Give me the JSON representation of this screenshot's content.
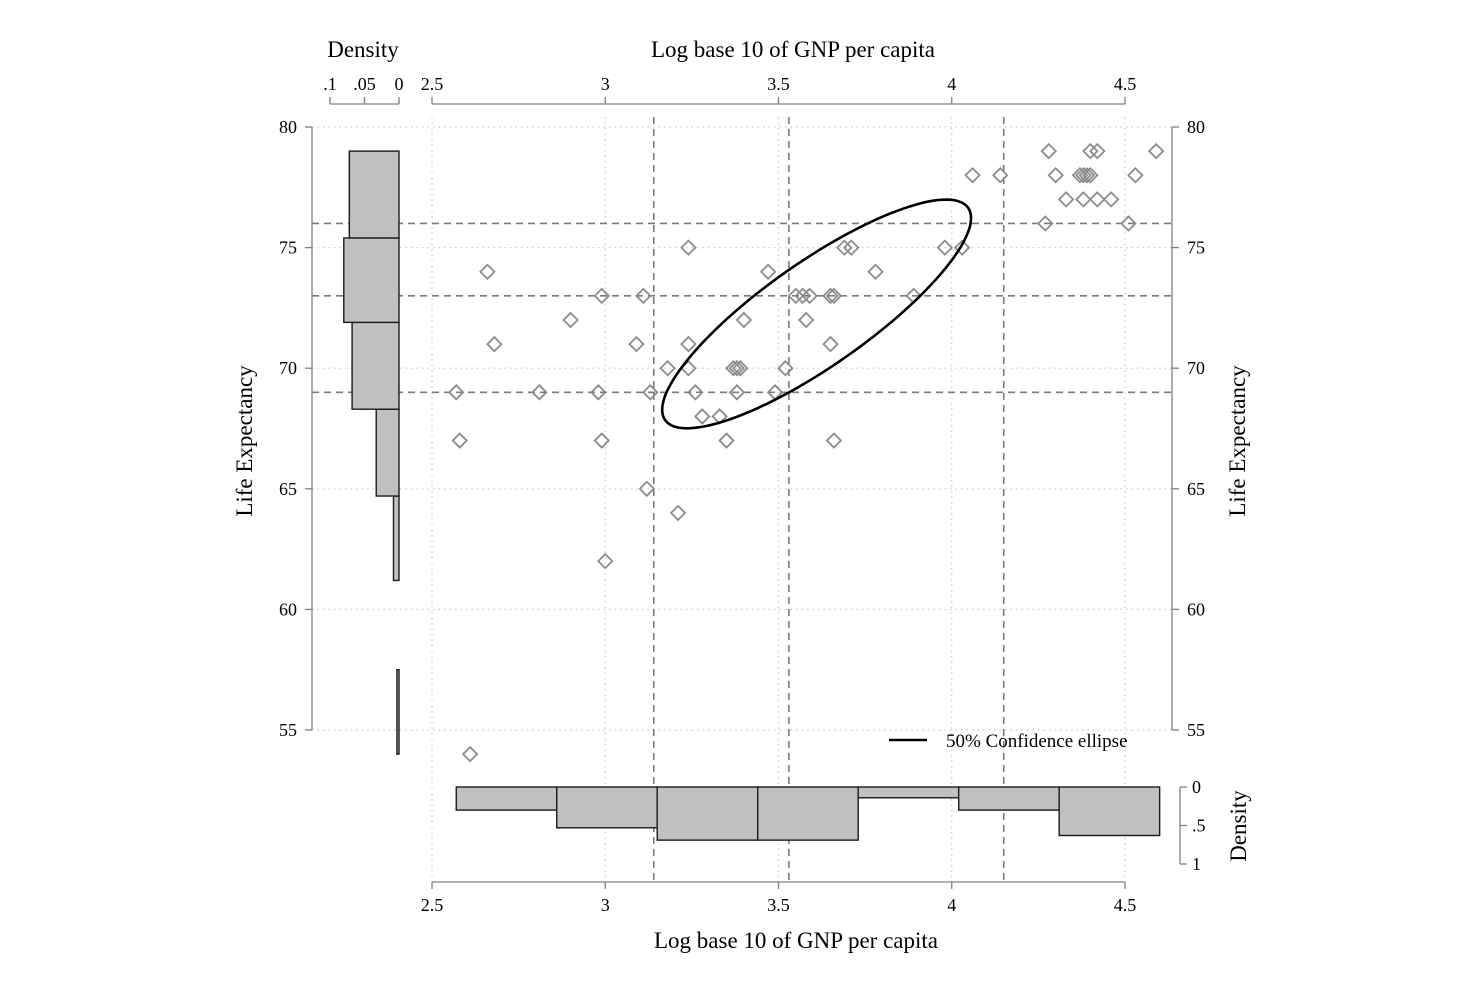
{
  "colors": {
    "marker": "#8c8c8c",
    "bar_fill": "#c0c0c0",
    "bar_stroke": "#1a1a1a",
    "axis": "#808080",
    "grid": "#c8c8c8",
    "quantile_line": "#7a7a7a",
    "ellipse": "#000000"
  },
  "chart_data": {
    "type": "scatter",
    "marker": "hollow-diamond",
    "x_axis": {
      "label": "Log base 10 of GNP per capita",
      "range": [
        2.5,
        4.6
      ],
      "ticks": [
        2.5,
        3,
        3.5,
        4,
        4.5
      ],
      "tick_labels": [
        "2.5",
        "3",
        "3.5",
        "4",
        "4.5"
      ],
      "shown_top_and_bottom": true
    },
    "y_axis": {
      "label": "Life Expectancy",
      "range": [
        54,
        80
      ],
      "ticks": [
        55,
        60,
        65,
        70,
        75,
        80
      ],
      "tick_labels": [
        "55",
        "60",
        "65",
        "70",
        "75",
        "80"
      ],
      "shown_left_and_right": true
    },
    "grid": true,
    "points": [
      {
        "x": 2.57,
        "y": 69
      },
      {
        "x": 2.58,
        "y": 67
      },
      {
        "x": 2.61,
        "y": 54
      },
      {
        "x": 2.66,
        "y": 74
      },
      {
        "x": 2.68,
        "y": 71
      },
      {
        "x": 2.81,
        "y": 69
      },
      {
        "x": 2.9,
        "y": 72
      },
      {
        "x": 2.98,
        "y": 69
      },
      {
        "x": 2.99,
        "y": 73
      },
      {
        "x": 2.99,
        "y": 67
      },
      {
        "x": 3.0,
        "y": 62
      },
      {
        "x": 3.09,
        "y": 71
      },
      {
        "x": 3.11,
        "y": 73
      },
      {
        "x": 3.12,
        "y": 65
      },
      {
        "x": 3.13,
        "y": 69
      },
      {
        "x": 3.18,
        "y": 70
      },
      {
        "x": 3.21,
        "y": 64
      },
      {
        "x": 3.24,
        "y": 75
      },
      {
        "x": 3.24,
        "y": 71
      },
      {
        "x": 3.24,
        "y": 70
      },
      {
        "x": 3.26,
        "y": 69
      },
      {
        "x": 3.28,
        "y": 68
      },
      {
        "x": 3.33,
        "y": 68
      },
      {
        "x": 3.35,
        "y": 67
      },
      {
        "x": 3.37,
        "y": 70
      },
      {
        "x": 3.38,
        "y": 69
      },
      {
        "x": 3.38,
        "y": 70
      },
      {
        "x": 3.39,
        "y": 70
      },
      {
        "x": 3.4,
        "y": 72
      },
      {
        "x": 3.47,
        "y": 74
      },
      {
        "x": 3.49,
        "y": 69
      },
      {
        "x": 3.52,
        "y": 70
      },
      {
        "x": 3.55,
        "y": 73
      },
      {
        "x": 3.57,
        "y": 73
      },
      {
        "x": 3.58,
        "y": 72
      },
      {
        "x": 3.59,
        "y": 73
      },
      {
        "x": 3.65,
        "y": 73
      },
      {
        "x": 3.65,
        "y": 71
      },
      {
        "x": 3.66,
        "y": 67
      },
      {
        "x": 3.66,
        "y": 73
      },
      {
        "x": 3.69,
        "y": 75
      },
      {
        "x": 3.71,
        "y": 75
      },
      {
        "x": 3.78,
        "y": 74
      },
      {
        "x": 3.89,
        "y": 73
      },
      {
        "x": 3.98,
        "y": 75
      },
      {
        "x": 4.03,
        "y": 75
      },
      {
        "x": 4.06,
        "y": 78
      },
      {
        "x": 4.14,
        "y": 78
      },
      {
        "x": 4.27,
        "y": 76
      },
      {
        "x": 4.28,
        "y": 79
      },
      {
        "x": 4.3,
        "y": 78
      },
      {
        "x": 4.33,
        "y": 77
      },
      {
        "x": 4.37,
        "y": 78
      },
      {
        "x": 4.38,
        "y": 77
      },
      {
        "x": 4.38,
        "y": 78
      },
      {
        "x": 4.39,
        "y": 78
      },
      {
        "x": 4.4,
        "y": 79
      },
      {
        "x": 4.4,
        "y": 78
      },
      {
        "x": 4.42,
        "y": 77
      },
      {
        "x": 4.42,
        "y": 79
      },
      {
        "x": 4.46,
        "y": 77
      },
      {
        "x": 4.51,
        "y": 76
      },
      {
        "x": 4.53,
        "y": 78
      },
      {
        "x": 4.59,
        "y": 79
      }
    ],
    "quantile_lines": {
      "x": [
        3.14,
        3.53,
        4.15
      ],
      "y": [
        69,
        73,
        76
      ]
    },
    "confidence_ellipse": {
      "label": "50% Confidence ellipse",
      "center": [
        3.61,
        72.25
      ],
      "semi_major": 0.5,
      "semi_minor": 1.8,
      "angle_deg": 35
    },
    "x_histogram": {
      "title": "Density",
      "axis_range": [
        0,
        1
      ],
      "ticks": [
        0,
        0.5,
        1
      ],
      "tick_labels": [
        "0",
        ".5",
        "1"
      ],
      "bins": [
        {
          "from": 2.57,
          "to": 2.86,
          "density": 0.3
        },
        {
          "from": 2.86,
          "to": 3.15,
          "density": 0.53
        },
        {
          "from": 3.15,
          "to": 3.44,
          "density": 0.69
        },
        {
          "from": 3.44,
          "to": 3.73,
          "density": 0.69
        },
        {
          "from": 3.73,
          "to": 4.02,
          "density": 0.14
        },
        {
          "from": 4.02,
          "to": 4.31,
          "density": 0.3
        },
        {
          "from": 4.31,
          "to": 4.6,
          "density": 0.63
        }
      ]
    },
    "y_histogram": {
      "title": "Density",
      "axis_range": [
        0,
        0.1
      ],
      "ticks": [
        0.1,
        0.05,
        0
      ],
      "tick_labels": [
        ".1",
        ".05",
        "0"
      ],
      "bins": [
        {
          "from": 54,
          "to": 57.5,
          "density": 0.003
        },
        {
          "from": 57.5,
          "to": 61.2,
          "density": 0
        },
        {
          "from": 61.2,
          "to": 64.7,
          "density": 0.008
        },
        {
          "from": 64.7,
          "to": 68.3,
          "density": 0.033
        },
        {
          "from": 68.3,
          "to": 71.9,
          "density": 0.068
        },
        {
          "from": 71.9,
          "to": 75.4,
          "density": 0.08
        },
        {
          "from": 75.4,
          "to": 79,
          "density": 0.072
        }
      ]
    }
  }
}
